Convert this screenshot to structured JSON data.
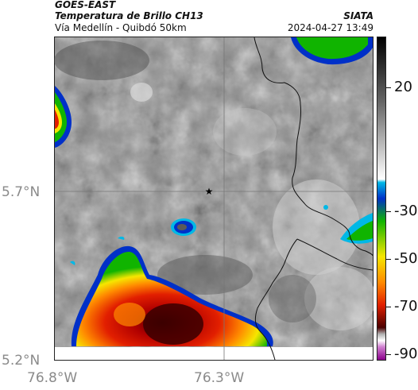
{
  "header": {
    "satellite": "GOES-EAST",
    "product": "Temperatura de Brillo CH13",
    "organization": "SIATA",
    "route": "Vía Medellín - Quibdó 50km",
    "datetime": "2024-04-27 13:49"
  },
  "axes": {
    "lat_labels": [
      "5.7°N",
      "5.2°N"
    ],
    "lon_labels": [
      "76.8°W",
      "76.3°W"
    ]
  },
  "colorbar": {
    "ticks": [
      "20",
      "-30",
      "-50",
      "-70",
      "-90"
    ]
  },
  "map": {
    "marker": "star-icon",
    "colors": {
      "cold_top": "#3a0000",
      "deep_red": "#b00000",
      "red": "#e21f00",
      "orange": "#ff8a00",
      "yellow": "#f6e600",
      "green": "#10b400",
      "blue": "#0030c8",
      "cyan": "#00b8e6",
      "gray_dark": "#5a5a5a",
      "gray_light": "#c8c8c8"
    }
  }
}
